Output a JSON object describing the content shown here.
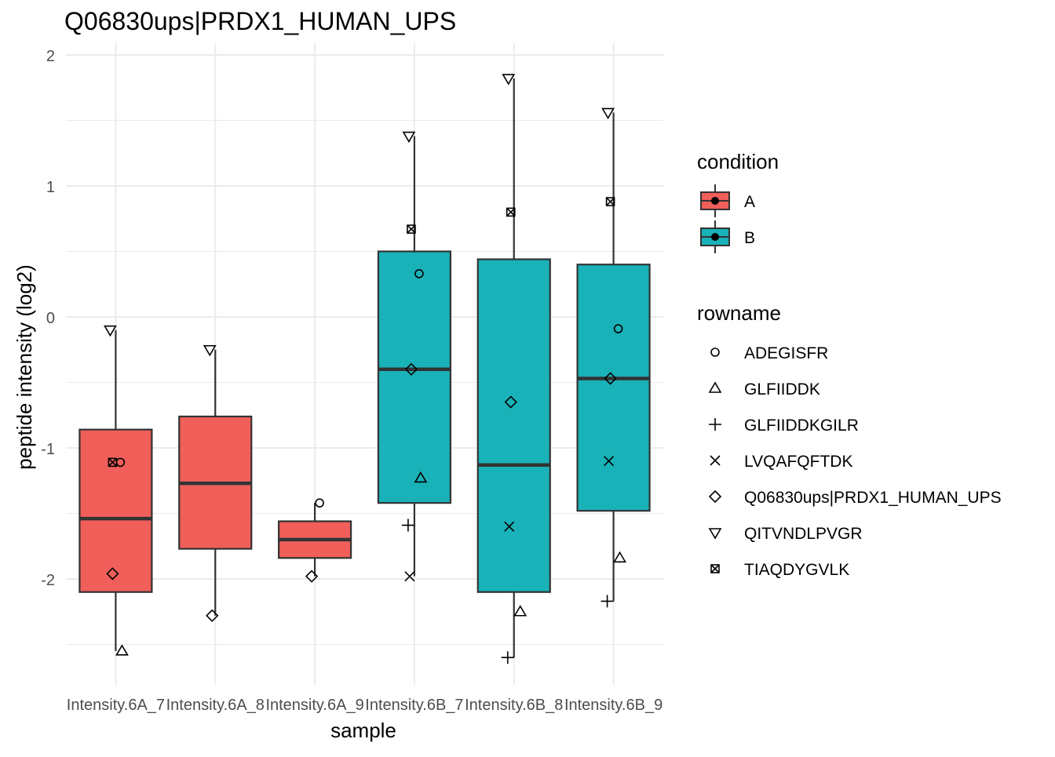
{
  "chart_data": {
    "type": "boxplot",
    "title": "Q06830ups|PRDX1_HUMAN_UPS",
    "xlabel": "sample",
    "ylabel": "peptide intensity (log2)",
    "ylim": [
      -2.8,
      2.0
    ],
    "yticks": [
      -2,
      -1,
      0,
      1,
      2
    ],
    "ytick_labels": [
      "-2",
      "-1",
      "0",
      "1",
      "2"
    ],
    "grid": true,
    "colors": {
      "A": "#F15F5B",
      "B": "#19B2B8"
    },
    "categories": [
      "Intensity.6A_7",
      "Intensity.6A_8",
      "Intensity.6A_9",
      "Intensity.6B_7",
      "Intensity.6B_8",
      "Intensity.6B_9"
    ],
    "x_tick_labels": [
      "Intensity.6A_7",
      "Intensity.6A_8",
      "Intensity.6A_9",
      "Intensity.6B_7",
      "Intensity.6B_8",
      "Intensity.6B_9"
    ],
    "boxes": [
      {
        "sample": "Intensity.6A_7",
        "condition": "A",
        "whisker_low": -2.55,
        "q1": -2.1,
        "median": -1.54,
        "q3": -0.86,
        "whisker_high": -0.1
      },
      {
        "sample": "Intensity.6A_8",
        "condition": "A",
        "whisker_low": -2.28,
        "q1": -1.77,
        "median": -1.27,
        "q3": -0.76,
        "whisker_high": -0.25
      },
      {
        "sample": "Intensity.6A_9",
        "condition": "A",
        "whisker_low": -1.98,
        "q1": -1.84,
        "median": -1.7,
        "q3": -1.56,
        "whisker_high": -1.42
      },
      {
        "sample": "Intensity.6B_7",
        "condition": "B",
        "whisker_low": -1.98,
        "q1": -1.42,
        "median": -0.4,
        "q3": 0.5,
        "whisker_high": 1.38
      },
      {
        "sample": "Intensity.6B_8",
        "condition": "B",
        "whisker_low": -2.6,
        "q1": -2.1,
        "median": -1.13,
        "q3": 0.44,
        "whisker_high": 1.82
      },
      {
        "sample": "Intensity.6B_9",
        "condition": "B",
        "whisker_low": -2.17,
        "q1": -1.48,
        "median": -0.47,
        "q3": 0.4,
        "whisker_high": 1.56
      }
    ],
    "points": [
      {
        "sample": "Intensity.6A_7",
        "rowname": "ADEGISFR",
        "y": -1.11
      },
      {
        "sample": "Intensity.6A_7",
        "rowname": "GLFIIDDK",
        "y": -2.55
      },
      {
        "sample": "Intensity.6A_7",
        "rowname": "Q06830ups|PRDX1_HUMAN_UPS",
        "y": -1.96
      },
      {
        "sample": "Intensity.6A_7",
        "rowname": "QITVNDLPVGR",
        "y": -0.1
      },
      {
        "sample": "Intensity.6A_7",
        "rowname": "TIAQDYGVLK",
        "y": -1.11
      },
      {
        "sample": "Intensity.6A_8",
        "rowname": "Q06830ups|PRDX1_HUMAN_UPS",
        "y": -2.28
      },
      {
        "sample": "Intensity.6A_8",
        "rowname": "QITVNDLPVGR",
        "y": -0.25
      },
      {
        "sample": "Intensity.6A_9",
        "rowname": "ADEGISFR",
        "y": -1.42
      },
      {
        "sample": "Intensity.6A_9",
        "rowname": "Q06830ups|PRDX1_HUMAN_UPS",
        "y": -1.98
      },
      {
        "sample": "Intensity.6B_7",
        "rowname": "ADEGISFR",
        "y": 0.33
      },
      {
        "sample": "Intensity.6B_7",
        "rowname": "GLFIIDDK",
        "y": -1.23
      },
      {
        "sample": "Intensity.6B_7",
        "rowname": "GLFIIDDKGILR",
        "y": -1.59
      },
      {
        "sample": "Intensity.6B_7",
        "rowname": "LVQAFQFTDK",
        "y": -1.98
      },
      {
        "sample": "Intensity.6B_7",
        "rowname": "Q06830ups|PRDX1_HUMAN_UPS",
        "y": -0.4
      },
      {
        "sample": "Intensity.6B_7",
        "rowname": "QITVNDLPVGR",
        "y": 1.38
      },
      {
        "sample": "Intensity.6B_7",
        "rowname": "TIAQDYGVLK",
        "y": 0.67
      },
      {
        "sample": "Intensity.6B_8",
        "rowname": "GLFIIDDK",
        "y": -2.25
      },
      {
        "sample": "Intensity.6B_8",
        "rowname": "GLFIIDDKGILR",
        "y": -2.6
      },
      {
        "sample": "Intensity.6B_8",
        "rowname": "LVQAFQFTDK",
        "y": -1.6
      },
      {
        "sample": "Intensity.6B_8",
        "rowname": "Q06830ups|PRDX1_HUMAN_UPS",
        "y": -0.65
      },
      {
        "sample": "Intensity.6B_8",
        "rowname": "QITVNDLPVGR",
        "y": 1.82
      },
      {
        "sample": "Intensity.6B_8",
        "rowname": "TIAQDYGVLK",
        "y": 0.8
      },
      {
        "sample": "Intensity.6B_9",
        "rowname": "ADEGISFR",
        "y": -0.09
      },
      {
        "sample": "Intensity.6B_9",
        "rowname": "GLFIIDDK",
        "y": -1.84
      },
      {
        "sample": "Intensity.6B_9",
        "rowname": "GLFIIDDKGILR",
        "y": -2.17
      },
      {
        "sample": "Intensity.6B_9",
        "rowname": "LVQAFQFTDK",
        "y": -1.1
      },
      {
        "sample": "Intensity.6B_9",
        "rowname": "Q06830ups|PRDX1_HUMAN_UPS",
        "y": -0.47
      },
      {
        "sample": "Intensity.6B_9",
        "rowname": "QITVNDLPVGR",
        "y": 1.56
      },
      {
        "sample": "Intensity.6B_9",
        "rowname": "TIAQDYGVLK",
        "y": 0.88
      }
    ],
    "legend": {
      "placement": "right",
      "condition_title": "condition",
      "condition_items": [
        {
          "label": "A",
          "color": "#F15F5B"
        },
        {
          "label": "B",
          "color": "#19B2B8"
        }
      ],
      "rowname_title": "rowname",
      "rowname_items": [
        {
          "label": "ADEGISFR",
          "shape": "circle"
        },
        {
          "label": "GLFIIDDK",
          "shape": "triangle-up"
        },
        {
          "label": "GLFIIDDKGILR",
          "shape": "plus"
        },
        {
          "label": "LVQAFQFTDK",
          "shape": "cross"
        },
        {
          "label": "Q06830ups|PRDX1_HUMAN_UPS",
          "shape": "diamond"
        },
        {
          "label": "QITVNDLPVGR",
          "shape": "triangle-down"
        },
        {
          "label": "TIAQDYGVLK",
          "shape": "square-cross"
        }
      ]
    }
  }
}
